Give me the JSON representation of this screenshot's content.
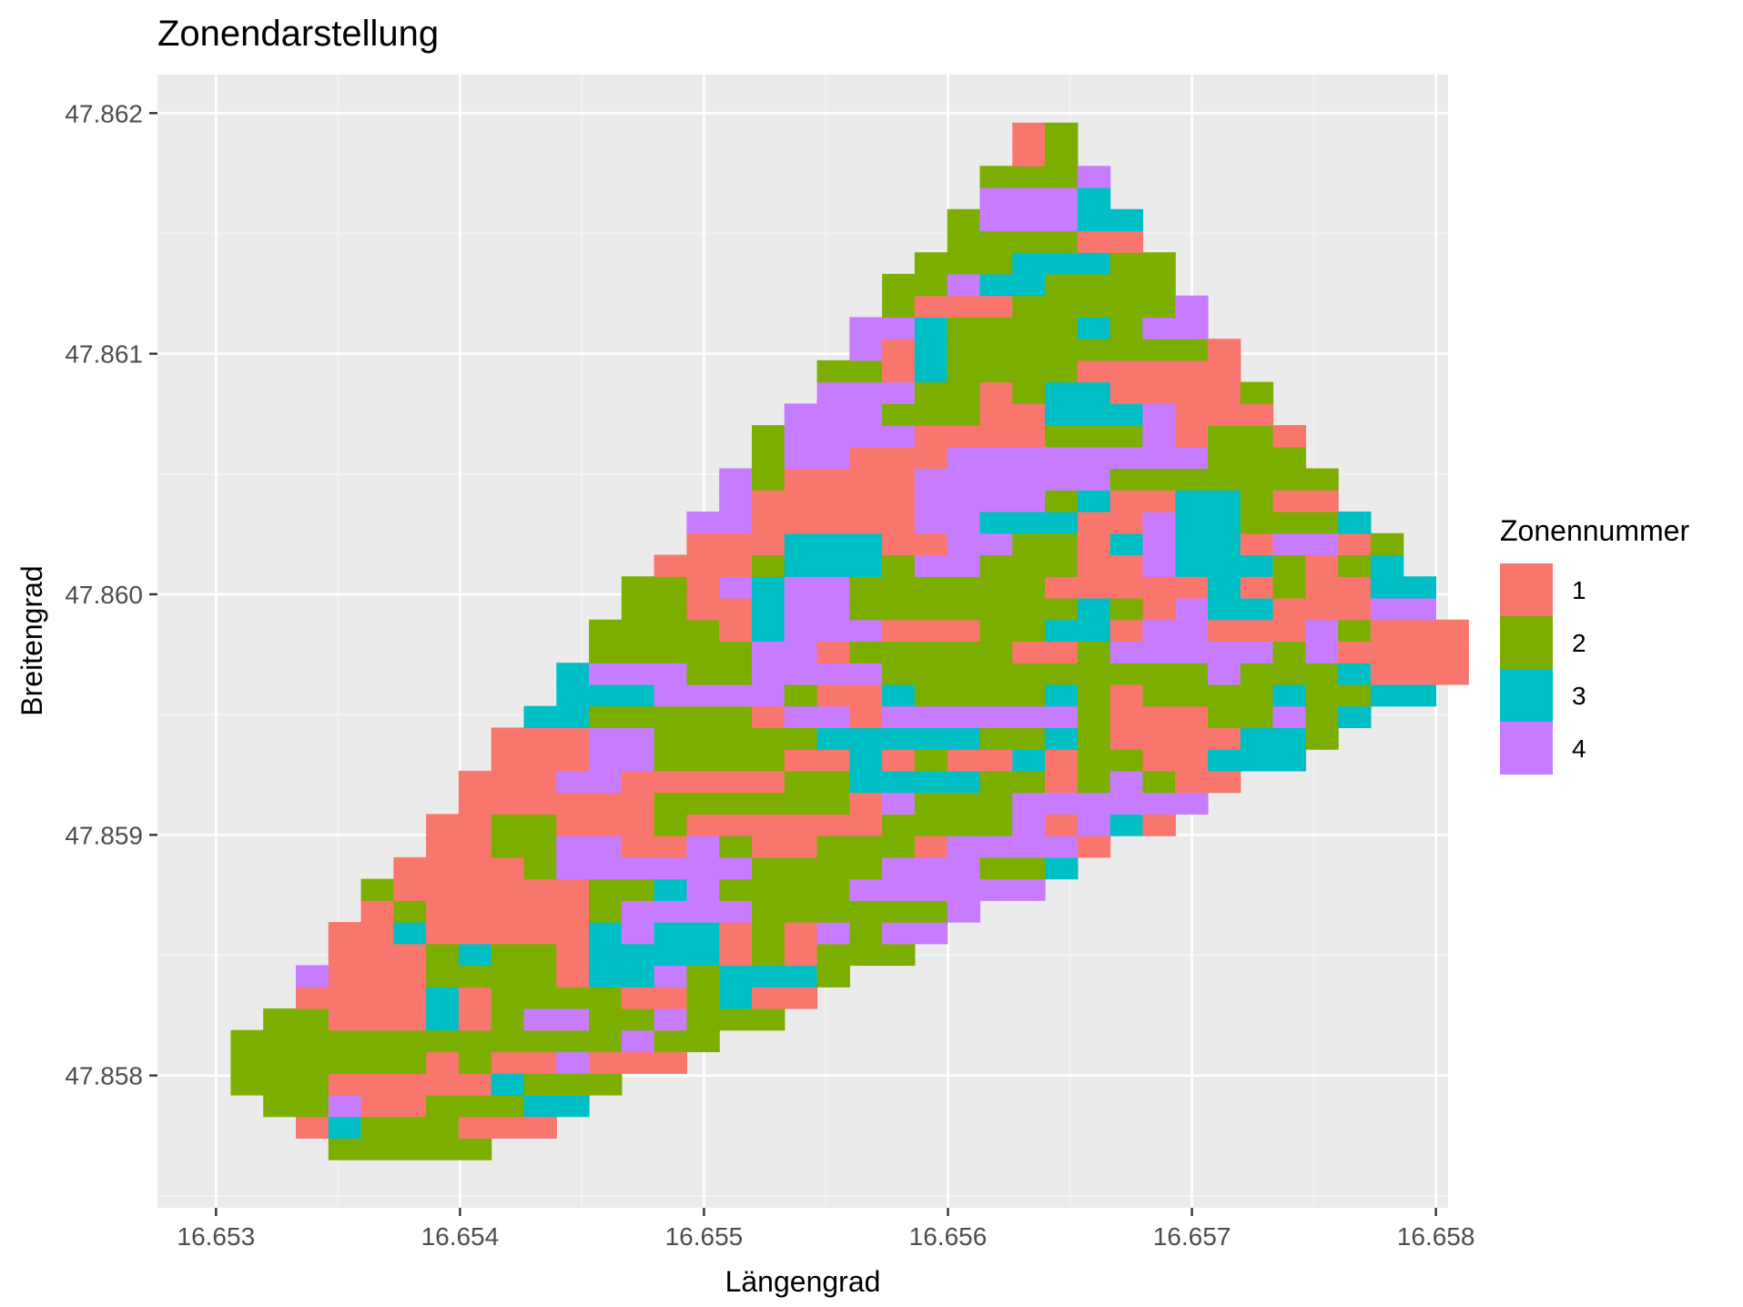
{
  "chart_data": {
    "type": "heatmap",
    "title": "Zonendarstellung",
    "xlabel": "Längengrad",
    "ylabel": "Breitengrad",
    "xlim": [
      16.65276,
      16.65805
    ],
    "ylim": [
      47.85745,
      47.86216
    ],
    "x_ticks": [
      16.653,
      16.654,
      16.655,
      16.656,
      16.657,
      16.658
    ],
    "x_tick_labels": [
      "16.653",
      "16.654",
      "16.655",
      "16.656",
      "16.657",
      "16.658"
    ],
    "y_ticks": [
      47.858,
      47.859,
      47.86,
      47.861,
      47.862
    ],
    "y_tick_labels": [
      "47.858",
      "47.859",
      "47.860",
      "47.861",
      "47.862"
    ],
    "grid": true,
    "legend_position": "right",
    "legend": {
      "title": "Zonennummer",
      "entries": [
        {
          "label": "1",
          "color": "#F8766D"
        },
        {
          "label": "2",
          "color": "#7CAE00"
        },
        {
          "label": "3",
          "color": "#00BFC4"
        },
        {
          "label": "4",
          "color": "#C77CFF"
        }
      ]
    },
    "colors": {
      "panel_background": "#EBEBEB",
      "grid_major": "#FFFFFF",
      "grid_minor": "#F5F5F5"
    },
    "cell_width": 0.0001335,
    "cell_height": 8.98e-05,
    "grid_origin": {
      "x": 16.65306,
      "y": 47.85765
    },
    "region_corners": [
      [
        16.653,
        47.858
      ],
      [
        16.6538,
        47.8575
      ],
      [
        16.6582,
        47.8597
      ],
      [
        16.6564,
        47.862
      ]
    ],
    "series": [
      {
        "name": "1",
        "values": [
          1
        ],
        "x": [
          16.6538
        ],
        "y": [
          47.8579
        ]
      },
      {
        "name": "2",
        "values": [
          2
        ],
        "x": [
          16.6564
        ],
        "y": [
          47.8618
        ]
      },
      {
        "name": "3",
        "values": [
          3
        ],
        "x": [
          16.657
        ],
        "y": [
          47.8601
        ]
      },
      {
        "name": "4",
        "values": [
          4
        ],
        "x": [
          16.6555
        ],
        "y": [
          47.8595
        ]
      }
    ]
  }
}
